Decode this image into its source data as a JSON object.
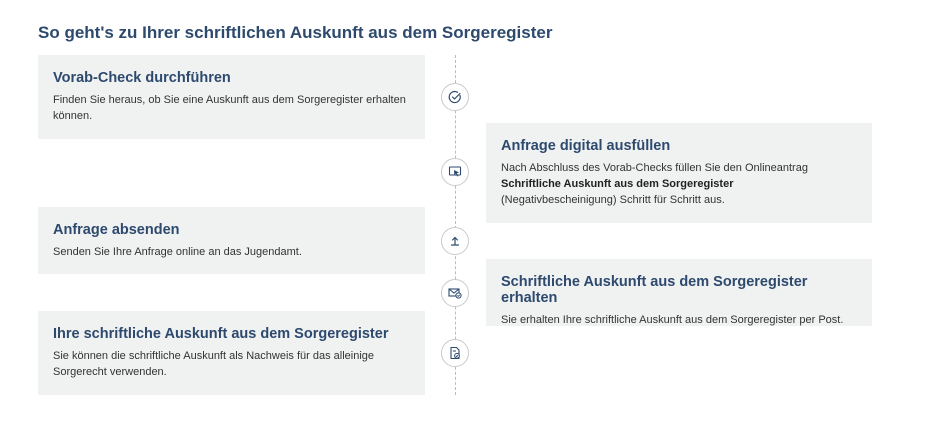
{
  "page": {
    "title": "So geht's zu Ihrer schriftlichen Auskunft aus dem Sorgeregister"
  },
  "steps": [
    {
      "title": "Vorab-Check durchführen",
      "text": "Finden Sie heraus, ob Sie eine Auskunft aus dem Sorgeregister erhalten können.",
      "icon": "check-circle-icon"
    },
    {
      "title": "Anfrage digital ausfüllen",
      "text_before": "Nach Abschluss des Vorab-Checks füllen Sie den Onlineantrag",
      "text_bold": "Schriftliche Auskunft aus dem Sorgeregister",
      "text_after": "(Negativbescheinigung) Schritt für Schritt aus.",
      "icon": "monitor-cursor-icon"
    },
    {
      "title": "Anfrage absenden",
      "text": "Senden Sie Ihre Anfrage online an das Jugendamt.",
      "icon": "upload-icon"
    },
    {
      "title": "Schriftliche Auskunft aus dem Sorgeregister erhalten",
      "text": "Sie erhalten Ihre schriftliche Auskunft aus dem Sorgeregister per Post.",
      "icon": "mail-check-icon"
    },
    {
      "title": "Ihre schriftliche Auskunft aus dem Sorgeregister",
      "text": "Sie können die schriftliche Auskunft als Nachweis für das alleinige Sorgerecht verwenden.",
      "icon": "document-check-icon"
    }
  ],
  "colors": {
    "title": "#2d4a6e",
    "card_background": "#f0f1f1",
    "timeline": "#b9bcbf"
  }
}
